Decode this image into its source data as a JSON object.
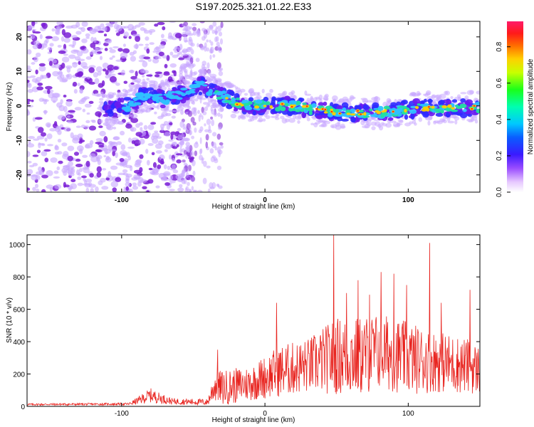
{
  "title": "S197.2025.321.01.22.E33",
  "colors": {
    "snr_line": "#e8231e",
    "scatter_low": "#c8a8ff",
    "scatter_mid": "#7a1fd6",
    "ridge_core": "#2fc1ff",
    "ridge_hot": "#ff2a1a"
  },
  "chart_data": [
    {
      "type": "heatmap",
      "name": "spectrogram",
      "xlabel": "Height of straight line (km)",
      "ylabel": "Frequency (Hz)",
      "xlim": [
        -166,
        150
      ],
      "ylim": [
        -25,
        24.5
      ],
      "x_ticks": [
        -100,
        0,
        100
      ],
      "x_tick_labels": [
        "-100",
        "0",
        "100"
      ],
      "y_ticks": [
        -20,
        -10,
        0,
        10,
        20
      ],
      "y_tick_labels": [
        "-20",
        "-10",
        "0",
        "10",
        "20"
      ],
      "colorbar": {
        "label": "Normalized spectral amplitude",
        "range": [
          0,
          0.94
        ],
        "ticks": [
          0.0,
          0.2,
          0.4,
          0.6,
          0.8
        ],
        "tick_labels": [
          "0.0",
          "0.2",
          "0.4",
          "0.6",
          "0.8"
        ]
      },
      "ridge": [
        {
          "x": -110,
          "y": -1
        },
        {
          "x": -95,
          "y": 0
        },
        {
          "x": -85,
          "y": 3
        },
        {
          "x": -70,
          "y": 2
        },
        {
          "x": -55,
          "y": 4
        },
        {
          "x": -47,
          "y": 6
        },
        {
          "x": -40,
          "y": 5
        },
        {
          "x": -30,
          "y": 3
        },
        {
          "x": -20,
          "y": 1
        },
        {
          "x": -10,
          "y": 0
        },
        {
          "x": 0,
          "y": 0
        },
        {
          "x": 20,
          "y": 0
        },
        {
          "x": 40,
          "y": -1.5
        },
        {
          "x": 60,
          "y": -2
        },
        {
          "x": 80,
          "y": -2
        },
        {
          "x": 100,
          "y": -1
        },
        {
          "x": 120,
          "y": -0.5
        },
        {
          "x": 145,
          "y": -0.5
        }
      ]
    },
    {
      "type": "line",
      "name": "snr",
      "xlabel": "Height of straight line (km)",
      "ylabel": "SNR (10 * v/v)",
      "xlim": [
        -166,
        150
      ],
      "ylim": [
        0,
        1060
      ],
      "x_ticks": [
        -100,
        0,
        100
      ],
      "x_tick_labels": [
        "-100",
        "0",
        "100"
      ],
      "y_ticks": [
        0,
        200,
        400,
        600,
        800,
        1000
      ],
      "y_tick_labels": [
        "0",
        "200",
        "400",
        "600",
        "800",
        "1000"
      ],
      "envelope": [
        {
          "x": -166,
          "base": 10,
          "amp": 12
        },
        {
          "x": -95,
          "base": 12,
          "amp": 15
        },
        {
          "x": -88,
          "base": 30,
          "amp": 50
        },
        {
          "x": -80,
          "base": 55,
          "amp": 90
        },
        {
          "x": -75,
          "base": 45,
          "amp": 70
        },
        {
          "x": -65,
          "base": 25,
          "amp": 40
        },
        {
          "x": -40,
          "base": 20,
          "amp": 40
        },
        {
          "x": -35,
          "base": 100,
          "amp": 200
        },
        {
          "x": -30,
          "base": 80,
          "amp": 220
        },
        {
          "x": -10,
          "base": 110,
          "amp": 220
        },
        {
          "x": 10,
          "base": 170,
          "amp": 320
        },
        {
          "x": 30,
          "base": 200,
          "amp": 340
        },
        {
          "x": 50,
          "base": 240,
          "amp": 480
        },
        {
          "x": 65,
          "base": 230,
          "amp": 500
        },
        {
          "x": 80,
          "base": 270,
          "amp": 480
        },
        {
          "x": 100,
          "base": 230,
          "amp": 450
        },
        {
          "x": 120,
          "base": 220,
          "amp": 380
        },
        {
          "x": 140,
          "base": 200,
          "amp": 350
        },
        {
          "x": 150,
          "base": 180,
          "amp": 300
        }
      ],
      "peaks": [
        {
          "x": -33,
          "y": 350
        },
        {
          "x": 8,
          "y": 640
        },
        {
          "x": 48,
          "y": 1060
        },
        {
          "x": 57,
          "y": 700
        },
        {
          "x": 65,
          "y": 780
        },
        {
          "x": 73,
          "y": 690
        },
        {
          "x": 81,
          "y": 830
        },
        {
          "x": 90,
          "y": 820
        },
        {
          "x": 99,
          "y": 750
        },
        {
          "x": 115,
          "y": 1010
        },
        {
          "x": 123,
          "y": 640
        },
        {
          "x": 143,
          "y": 720
        }
      ]
    }
  ]
}
